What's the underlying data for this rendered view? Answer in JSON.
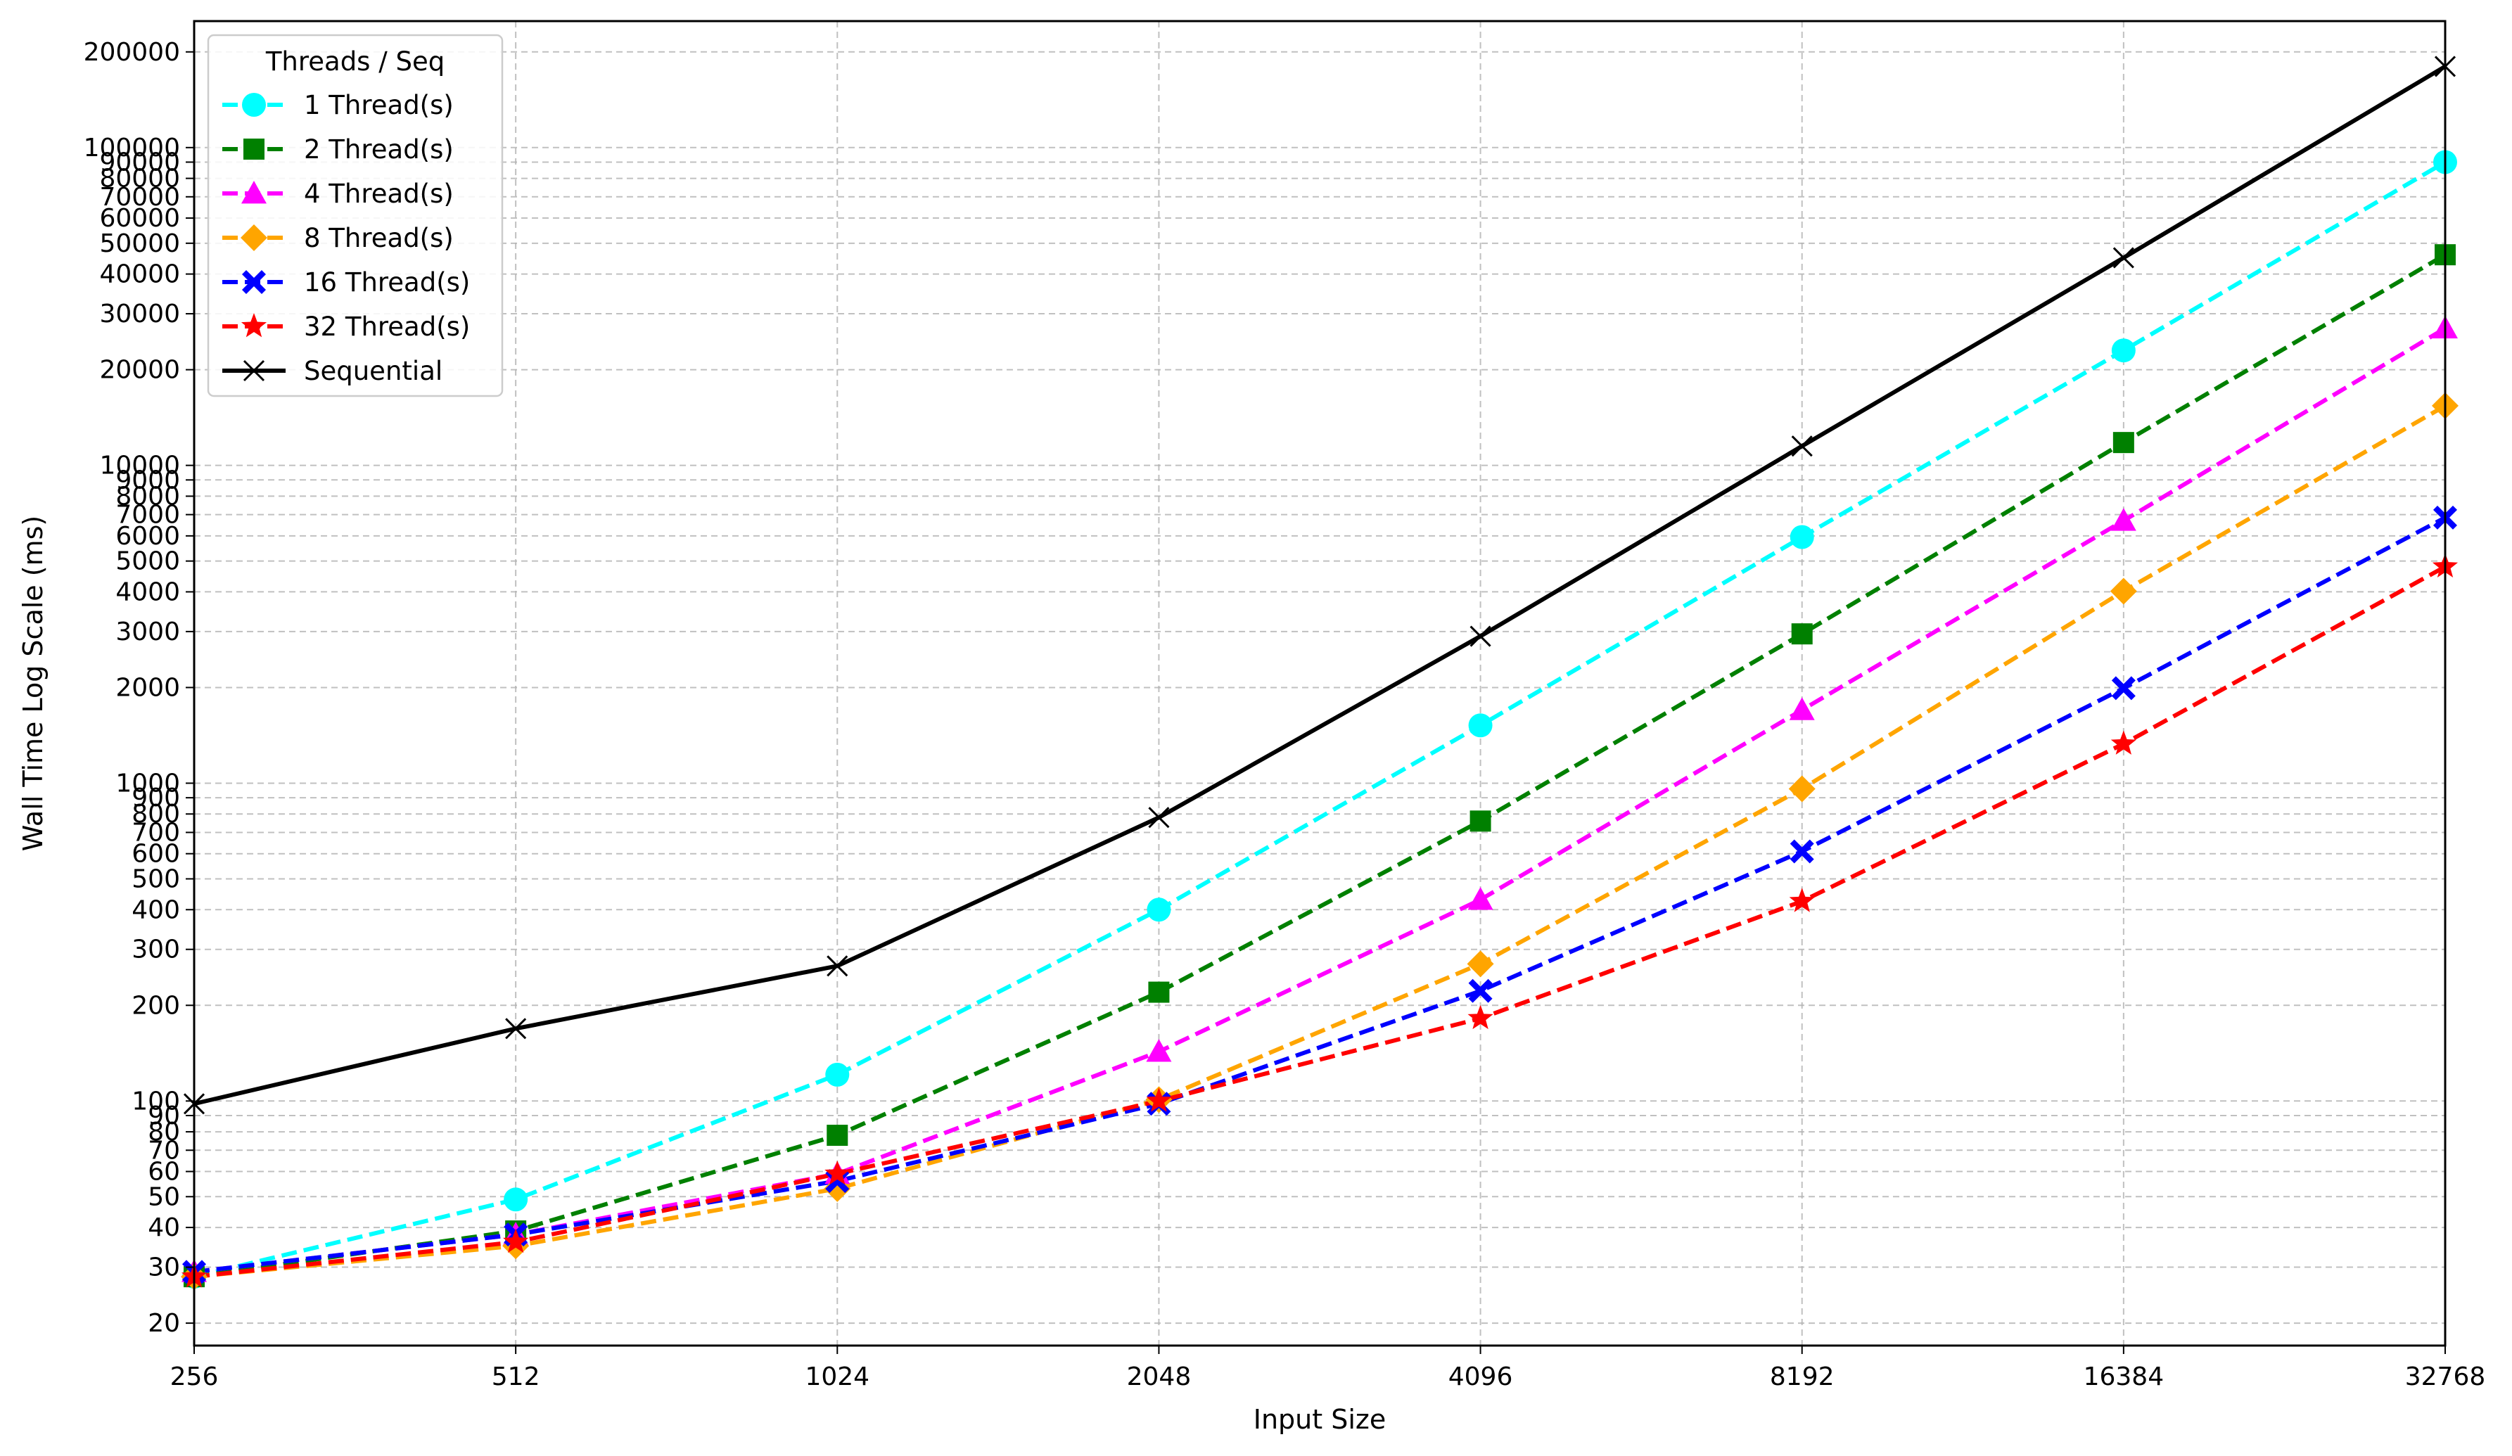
{
  "chart_data": {
    "type": "line",
    "title": "",
    "xlabel": "Input Size",
    "ylabel": "Wall Time Log Scale (ms)",
    "x": [
      256,
      512,
      1024,
      2048,
      4096,
      8192,
      16384,
      32768
    ],
    "x_tick_labels": [
      "256",
      "512",
      "1024",
      "2048",
      "4096",
      "8192",
      "16384",
      "32768"
    ],
    "x_scale": "log2",
    "y_scale": "log10",
    "xlim": [
      256,
      32768
    ],
    "ylim": [
      17,
      250000
    ],
    "y_ticks": [
      20,
      30,
      40,
      50,
      60,
      70,
      80,
      90,
      100,
      200,
      300,
      400,
      500,
      600,
      700,
      800,
      900,
      1000,
      2000,
      3000,
      4000,
      5000,
      6000,
      7000,
      8000,
      9000,
      10000,
      20000,
      30000,
      40000,
      50000,
      60000,
      70000,
      80000,
      90000,
      100000,
      200000
    ],
    "y_tick_labels": [
      "20",
      "30",
      "40",
      "50",
      "60",
      "70",
      "80",
      "90",
      "100",
      "200",
      "300",
      "400",
      "500",
      "600",
      "700",
      "800",
      "900",
      "1000",
      "2000",
      "3000",
      "4000",
      "5000",
      "6000",
      "7000",
      "8000",
      "9000",
      "10000",
      "20000",
      "30000",
      "40000",
      "50000",
      "60000",
      "70000",
      "80000",
      "90000",
      "100000",
      "200000"
    ],
    "grid": true,
    "legend_title": "Threads / Seq",
    "legend_position": "top-left",
    "series": [
      {
        "name": "1 Thread(s)",
        "color": "#00ffff",
        "marker": "circle",
        "dashed": true,
        "values": [
          28,
          49,
          121,
          400,
          1520,
          5950,
          23000,
          90000
        ]
      },
      {
        "name": "2 Thread(s)",
        "color": "#008000",
        "marker": "square",
        "dashed": true,
        "values": [
          28,
          39,
          78,
          220,
          760,
          2950,
          11800,
          46000
        ]
      },
      {
        "name": "4 Thread(s)",
        "color": "#ff00ff",
        "marker": "triangle",
        "dashed": true,
        "values": [
          29,
          38,
          59,
          143,
          430,
          1700,
          6700,
          27000
        ]
      },
      {
        "name": "8 Thread(s)",
        "color": "#ffa500",
        "marker": "diamond",
        "dashed": true,
        "values": [
          28,
          35,
          53,
          101,
          270,
          960,
          4020,
          15400
        ]
      },
      {
        "name": "16 Thread(s)",
        "color": "#0000ff",
        "marker": "x-filled",
        "dashed": true,
        "values": [
          29,
          38,
          56,
          98,
          222,
          610,
          1990,
          6850
        ]
      },
      {
        "name": "32 Thread(s)",
        "color": "#ff0000",
        "marker": "star",
        "dashed": true,
        "values": [
          28,
          36,
          59,
          100,
          182,
          425,
          1330,
          4800
        ]
      },
      {
        "name": "Sequential",
        "color": "#000000",
        "marker": "x",
        "dashed": false,
        "values": [
          98,
          169,
          266,
          780,
          2900,
          11500,
          45000,
          180000
        ]
      }
    ]
  }
}
